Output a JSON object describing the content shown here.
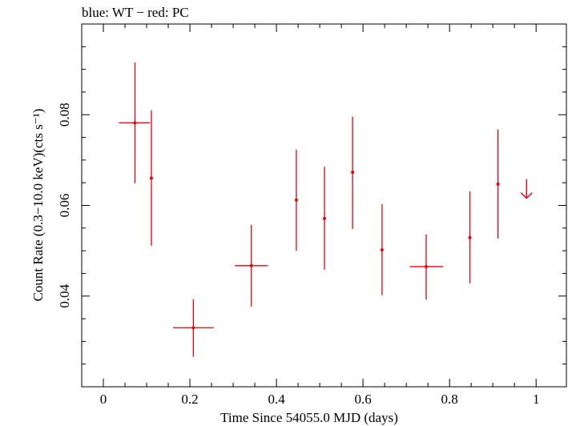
{
  "chart_data": {
    "type": "scatter",
    "title": "blue: WT − red: PC",
    "xlabel": "Time Since 54055.0 MJD (days)",
    "ylabel": "Count Rate (0.3−10.0 keV)(cts s⁻¹)",
    "xlim": [
      -0.05,
      1.07
    ],
    "ylim": [
      0.02,
      0.1
    ],
    "x_ticks": [
      0,
      0.2,
      0.4,
      0.6,
      0.8,
      1
    ],
    "x_tick_labels": [
      "0",
      "0.2",
      "0.4",
      "0.6",
      "0.8",
      "1"
    ],
    "y_ticks": [
      0.04,
      0.06,
      0.08
    ],
    "y_tick_labels": [
      "0.04",
      "0.06",
      "0.08"
    ],
    "grid": false,
    "series": [
      {
        "color": "#e8000b",
        "points": [
          {
            "x": 0.073,
            "xerr_lo": 0.037,
            "xerr_hi": 0.035,
            "y": 0.0782,
            "y_lo": 0.0649,
            "y_hi": 0.0915
          },
          {
            "x": 0.111,
            "xerr_lo": 0.0,
            "xerr_hi": 0.0,
            "y": 0.066,
            "y_lo": 0.0511,
            "y_hi": 0.081
          },
          {
            "x": 0.208,
            "xerr_lo": 0.047,
            "xerr_hi": 0.047,
            "y": 0.033,
            "y_lo": 0.0266,
            "y_hi": 0.0393
          },
          {
            "x": 0.342,
            "xerr_lo": 0.038,
            "xerr_hi": 0.038,
            "y": 0.0467,
            "y_lo": 0.0377,
            "y_hi": 0.0557
          },
          {
            "x": 0.446,
            "xerr_lo": 0.0,
            "xerr_hi": 0.0,
            "y": 0.0612,
            "y_lo": 0.05,
            "y_hi": 0.0723
          },
          {
            "x": 0.511,
            "xerr_lo": 0.0,
            "xerr_hi": 0.0,
            "y": 0.0571,
            "y_lo": 0.0458,
            "y_hi": 0.0685
          },
          {
            "x": 0.576,
            "xerr_lo": 0.0,
            "xerr_hi": 0.0,
            "y": 0.0673,
            "y_lo": 0.0548,
            "y_hi": 0.0796
          },
          {
            "x": 0.644,
            "xerr_lo": 0.0,
            "xerr_hi": 0.0,
            "y": 0.0502,
            "y_lo": 0.0402,
            "y_hi": 0.0603
          },
          {
            "x": 0.746,
            "xerr_lo": 0.038,
            "xerr_hi": 0.039,
            "y": 0.0465,
            "y_lo": 0.0392,
            "y_hi": 0.0536
          },
          {
            "x": 0.847,
            "xerr_lo": 0.0,
            "xerr_hi": 0.0,
            "y": 0.0529,
            "y_lo": 0.0428,
            "y_hi": 0.0631
          },
          {
            "x": 0.912,
            "xerr_lo": 0.0,
            "xerr_hi": 0.0,
            "y": 0.0647,
            "y_lo": 0.0527,
            "y_hi": 0.0767
          }
        ],
        "upper_limits": [
          {
            "x": 0.978,
            "y": 0.0658
          }
        ]
      }
    ]
  }
}
